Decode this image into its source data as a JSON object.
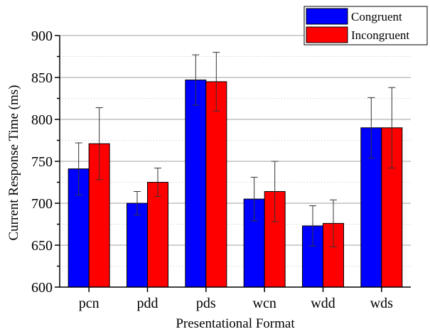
{
  "chart_data": {
    "type": "bar",
    "title": "",
    "xlabel": "Presentational Format",
    "ylabel": "Current Response Time (ms)",
    "ylim": [
      600,
      900
    ],
    "yticks": [
      600,
      650,
      700,
      750,
      800,
      850,
      900
    ],
    "grid": true,
    "legend": "top-right",
    "categories": [
      "pcn",
      "pdd",
      "pds",
      "wcn",
      "wdd",
      "wds"
    ],
    "series": [
      {
        "name": "Congruent",
        "color": "#0000ff",
        "values": [
          741,
          700,
          847,
          705,
          673,
          790
        ],
        "error": [
          31,
          14,
          30,
          26,
          24,
          36
        ]
      },
      {
        "name": "Incongruent",
        "color": "#ff0000",
        "values": [
          771,
          725,
          845,
          714,
          676,
          790
        ],
        "error": [
          43,
          17,
          35,
          36,
          28,
          48
        ]
      }
    ]
  }
}
